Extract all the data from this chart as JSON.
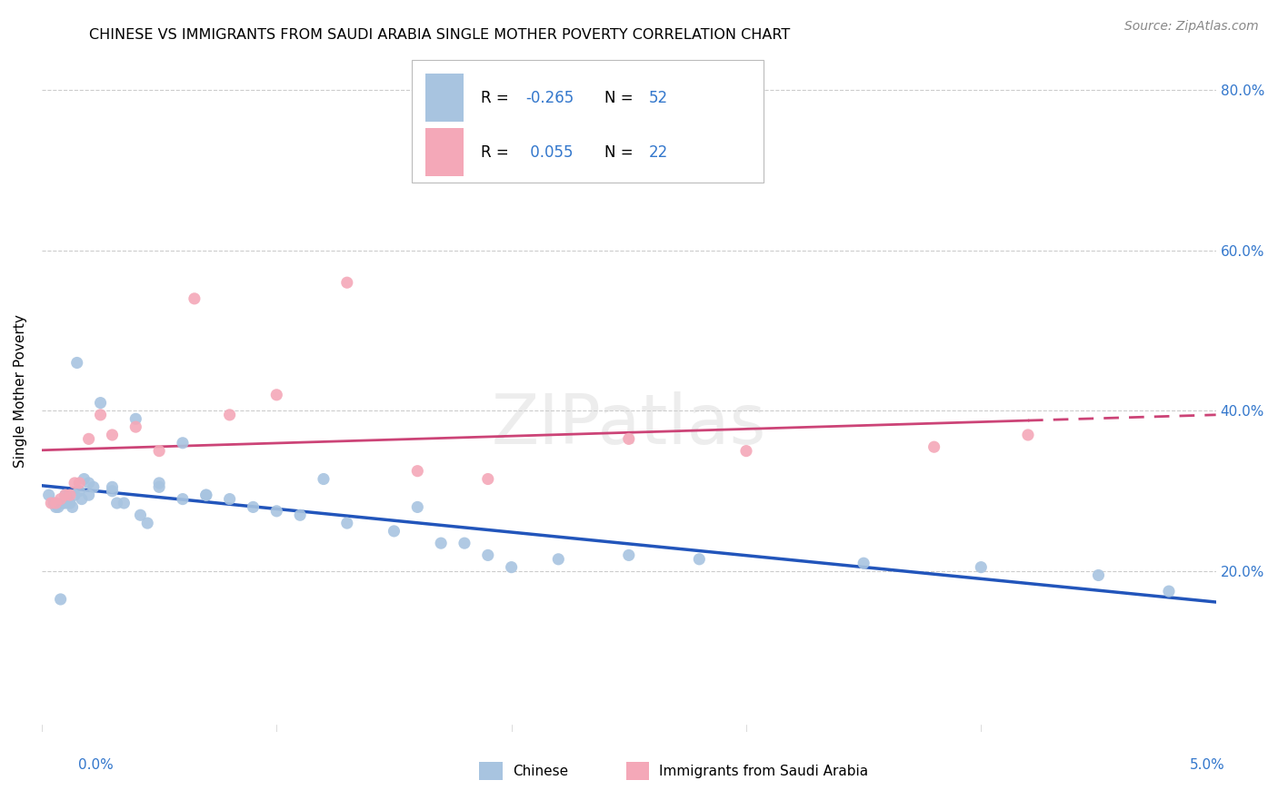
{
  "title": "CHINESE VS IMMIGRANTS FROM SAUDI ARABIA SINGLE MOTHER POVERTY CORRELATION CHART",
  "source": "Source: ZipAtlas.com",
  "ylabel": "Single Mother Poverty",
  "legend_label1": "Chinese",
  "legend_label2": "Immigrants from Saudi Arabia",
  "r1": "-0.265",
  "n1": "52",
  "r2": "0.055",
  "n2": "22",
  "xmin": 0.0,
  "xmax": 0.05,
  "ymin": 0.0,
  "ymax": 0.85,
  "blue_color": "#a8c4e0",
  "pink_color": "#f4a8b8",
  "blue_line_color": "#2255bb",
  "pink_line_color": "#cc4477",
  "watermark": "ZIPatlas",
  "blue_x": [
    0.0003,
    0.0005,
    0.0006,
    0.0007,
    0.0008,
    0.0009,
    0.001,
    0.001,
    0.0011,
    0.0012,
    0.0013,
    0.0014,
    0.0015,
    0.0016,
    0.0017,
    0.0018,
    0.002,
    0.002,
    0.0022,
    0.0025,
    0.003,
    0.003,
    0.0032,
    0.0035,
    0.004,
    0.0042,
    0.0045,
    0.005,
    0.005,
    0.006,
    0.006,
    0.007,
    0.007,
    0.008,
    0.009,
    0.01,
    0.011,
    0.012,
    0.013,
    0.015,
    0.016,
    0.017,
    0.018,
    0.019,
    0.02,
    0.022,
    0.025,
    0.028,
    0.035,
    0.04,
    0.045,
    0.048
  ],
  "blue_y": [
    0.295,
    0.285,
    0.28,
    0.28,
    0.165,
    0.285,
    0.285,
    0.295,
    0.29,
    0.285,
    0.28,
    0.295,
    0.46,
    0.3,
    0.29,
    0.315,
    0.31,
    0.295,
    0.305,
    0.41,
    0.3,
    0.305,
    0.285,
    0.285,
    0.39,
    0.27,
    0.26,
    0.31,
    0.305,
    0.36,
    0.29,
    0.295,
    0.295,
    0.29,
    0.28,
    0.275,
    0.27,
    0.315,
    0.26,
    0.25,
    0.28,
    0.235,
    0.235,
    0.22,
    0.205,
    0.215,
    0.22,
    0.215,
    0.21,
    0.205,
    0.195,
    0.175
  ],
  "pink_x": [
    0.0004,
    0.0006,
    0.0008,
    0.001,
    0.0012,
    0.0014,
    0.0016,
    0.002,
    0.0025,
    0.003,
    0.004,
    0.005,
    0.0065,
    0.008,
    0.01,
    0.013,
    0.016,
    0.019,
    0.025,
    0.03,
    0.038,
    0.042
  ],
  "pink_y": [
    0.285,
    0.285,
    0.29,
    0.295,
    0.295,
    0.31,
    0.31,
    0.365,
    0.395,
    0.37,
    0.38,
    0.35,
    0.54,
    0.395,
    0.42,
    0.56,
    0.325,
    0.315,
    0.365,
    0.35,
    0.355,
    0.37
  ]
}
